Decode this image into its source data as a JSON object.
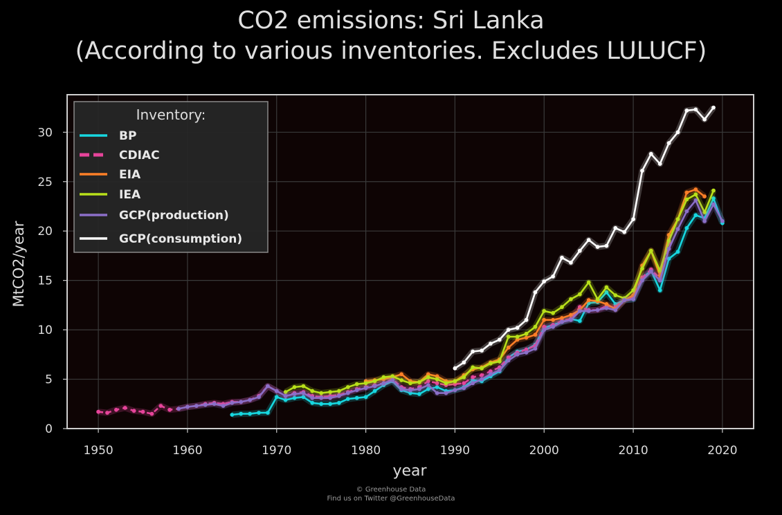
{
  "title_line1": "CO2 emissions: Sri Lanka",
  "title_line2": "(According to various inventories. Excludes LULUCF)",
  "footer_line1": "© Greenhouse Data",
  "footer_line2": "Find us on Twitter @GreenhouseData",
  "chart_data": {
    "type": "line",
    "xlabel": "year",
    "ylabel": "MtCO2/year",
    "xlim": [
      1946.5,
      2023.5
    ],
    "ylim": [
      0,
      33.8
    ],
    "xticks": [
      1950,
      1960,
      1970,
      1980,
      1990,
      2000,
      2010,
      2020
    ],
    "yticks": [
      0,
      5,
      10,
      15,
      20,
      25,
      30
    ],
    "grid": true,
    "legend": {
      "title": "Inventory:",
      "position": "top-left"
    },
    "series": [
      {
        "name": "BP",
        "color": "#17d7e0",
        "style": "solid",
        "x": [
          1965,
          1966,
          1967,
          1968,
          1969,
          1970,
          1971,
          1972,
          1973,
          1974,
          1975,
          1976,
          1977,
          1978,
          1979,
          1980,
          1981,
          1982,
          1983,
          1984,
          1985,
          1986,
          1987,
          1988,
          1989,
          1990,
          1991,
          1992,
          1993,
          1994,
          1995,
          1996,
          1997,
          1998,
          1999,
          2000,
          2001,
          2002,
          2003,
          2004,
          2005,
          2006,
          2007,
          2008,
          2009,
          2010,
          2011,
          2012,
          2013,
          2014,
          2015,
          2016,
          2017,
          2018,
          2019,
          2020
        ],
        "y": [
          1.4,
          1.5,
          1.5,
          1.6,
          1.6,
          3.2,
          2.9,
          3.1,
          3.2,
          2.6,
          2.5,
          2.5,
          2.6,
          3.0,
          3.1,
          3.2,
          3.8,
          4.4,
          4.8,
          3.9,
          3.6,
          3.5,
          4.0,
          4.2,
          3.8,
          3.9,
          4.2,
          4.9,
          4.8,
          5.3,
          5.8,
          7.2,
          7.8,
          8.0,
          8.5,
          10.2,
          10.5,
          10.8,
          11.1,
          10.9,
          12.7,
          12.8,
          13.8,
          12.6,
          13.0,
          13.1,
          15.2,
          16.0,
          14.0,
          17.2,
          17.9,
          20.3,
          21.6,
          21.3,
          23.3,
          20.8
        ]
      },
      {
        "name": "CDIAC",
        "color": "#e6449a",
        "style": "dashed",
        "x": [
          1950,
          1951,
          1952,
          1953,
          1954,
          1955,
          1956,
          1957,
          1958,
          1959,
          1960,
          1961,
          1962,
          1963,
          1964,
          1965,
          1966,
          1967,
          1968,
          1969,
          1970,
          1971,
          1972,
          1973,
          1974,
          1975,
          1976,
          1977,
          1978,
          1979,
          1980,
          1981,
          1982,
          1983,
          1984,
          1985,
          1986,
          1987,
          1988,
          1989,
          1990,
          1991,
          1992,
          1993,
          1994,
          1995,
          1996,
          1997,
          1998,
          1999,
          2000,
          2001,
          2002,
          2003,
          2004,
          2005,
          2006,
          2007,
          2008,
          2009,
          2010,
          2011,
          2012,
          2013,
          2014
        ],
        "y": [
          1.7,
          1.6,
          1.9,
          2.1,
          1.8,
          1.7,
          1.5,
          2.3,
          1.9,
          2.0,
          2.2,
          2.3,
          2.5,
          2.6,
          2.5,
          2.7,
          2.7,
          2.9,
          3.3,
          4.3,
          3.8,
          3.3,
          3.6,
          3.7,
          3.3,
          3.2,
          3.3,
          3.4,
          3.7,
          4.0,
          4.2,
          4.4,
          4.6,
          5.0,
          4.2,
          4.0,
          4.2,
          4.8,
          4.6,
          4.4,
          4.5,
          4.6,
          5.2,
          5.4,
          5.8,
          6.2,
          7.2,
          7.7,
          8.0,
          8.4,
          10.3,
          10.5,
          10.9,
          11.1,
          12.3,
          12.0,
          12.0,
          12.4,
          12.3,
          13.1,
          13.3,
          15.3,
          16.1,
          15.2,
          18.8
        ]
      },
      {
        "name": "EIA",
        "color": "#ff7f27",
        "style": "solid",
        "x": [
          1980,
          1981,
          1982,
          1983,
          1984,
          1985,
          1986,
          1987,
          1988,
          1989,
          1990,
          1991,
          1992,
          1993,
          1994,
          1995,
          1996,
          1997,
          1998,
          1999,
          2000,
          2001,
          2002,
          2003,
          2004,
          2005,
          2006,
          2007,
          2008,
          2009,
          2010,
          2011,
          2012,
          2013,
          2014,
          2015,
          2016,
          2017,
          2018
        ],
        "y": [
          4.8,
          4.9,
          5.0,
          5.2,
          5.5,
          4.8,
          4.7,
          5.5,
          5.3,
          4.8,
          4.8,
          5.4,
          6.0,
          6.2,
          6.7,
          7.0,
          8.2,
          9.0,
          9.2,
          9.5,
          11.0,
          11.0,
          11.2,
          11.5,
          12.0,
          13.0,
          12.9,
          12.6,
          12.1,
          13.0,
          13.5,
          16.5,
          18.0,
          15.5,
          19.6,
          21.2,
          23.9,
          24.2,
          23.5
        ]
      },
      {
        "name": "IEA",
        "color": "#b8e01a",
        "style": "solid",
        "x": [
          1971,
          1972,
          1973,
          1974,
          1975,
          1976,
          1977,
          1978,
          1979,
          1980,
          1981,
          1982,
          1983,
          1984,
          1985,
          1986,
          1987,
          1988,
          1989,
          1990,
          1991,
          1992,
          1993,
          1994,
          1995,
          1996,
          1997,
          1998,
          1999,
          2000,
          2001,
          2002,
          2003,
          2004,
          2005,
          2006,
          2007,
          2008,
          2009,
          2010,
          2011,
          2012,
          2013,
          2014,
          2015,
          2016,
          2017,
          2018,
          2019
        ],
        "y": [
          3.7,
          4.2,
          4.3,
          3.8,
          3.6,
          3.7,
          3.8,
          4.2,
          4.5,
          4.6,
          4.8,
          5.2,
          5.3,
          4.9,
          4.6,
          4.7,
          5.2,
          5.0,
          4.6,
          4.8,
          5.2,
          6.2,
          6.1,
          6.6,
          6.8,
          9.3,
          9.3,
          9.6,
          10.3,
          11.9,
          11.7,
          12.3,
          13.1,
          13.6,
          14.8,
          13.1,
          14.3,
          13.5,
          13.2,
          14.0,
          16.2,
          18.0,
          16.0,
          19.0,
          21.2,
          23.2,
          23.7,
          21.9,
          24.1
        ]
      },
      {
        "name": "GCP(production)",
        "color": "#8b6fc8",
        "style": "solid",
        "x": [
          1959,
          1960,
          1961,
          1962,
          1963,
          1964,
          1965,
          1966,
          1967,
          1968,
          1969,
          1970,
          1971,
          1972,
          1973,
          1974,
          1975,
          1976,
          1977,
          1978,
          1979,
          1980,
          1981,
          1982,
          1983,
          1984,
          1985,
          1986,
          1987,
          1988,
          1989,
          1990,
          1991,
          1992,
          1993,
          1994,
          1995,
          1996,
          1997,
          1998,
          1999,
          2000,
          2001,
          2002,
          2003,
          2004,
          2005,
          2006,
          2007,
          2008,
          2009,
          2010,
          2011,
          2012,
          2013,
          2014,
          2015,
          2016,
          2017,
          2018,
          2019,
          2020
        ],
        "y": [
          2.0,
          2.2,
          2.3,
          2.4,
          2.5,
          2.3,
          2.6,
          2.7,
          2.9,
          3.2,
          4.3,
          3.8,
          3.3,
          3.5,
          3.6,
          3.1,
          3.1,
          3.1,
          3.3,
          3.6,
          3.9,
          4.1,
          4.3,
          4.6,
          4.9,
          4.0,
          3.9,
          4.0,
          4.4,
          3.6,
          3.6,
          3.9,
          4.1,
          4.6,
          5.0,
          5.5,
          5.9,
          6.9,
          7.5,
          7.7,
          8.1,
          10.0,
          10.3,
          10.8,
          11.0,
          11.9,
          11.9,
          12.0,
          12.2,
          12.0,
          13.0,
          13.1,
          15.0,
          15.9,
          15.0,
          18.2,
          20.2,
          22.0,
          23.1,
          21.0,
          22.7,
          21.0
        ]
      },
      {
        "name": "GCP(consumption)",
        "color": "#ffffff",
        "style": "solid",
        "x": [
          1990,
          1991,
          1992,
          1993,
          1994,
          1995,
          1996,
          1997,
          1998,
          1999,
          2000,
          2001,
          2002,
          2003,
          2004,
          2005,
          2006,
          2007,
          2008,
          2009,
          2010,
          2011,
          2012,
          2013,
          2014,
          2015,
          2016,
          2017,
          2018,
          2019
        ],
        "y": [
          6.1,
          6.7,
          7.8,
          7.9,
          8.6,
          9.0,
          10.0,
          10.2,
          11.0,
          13.8,
          14.9,
          15.4,
          17.3,
          16.8,
          18.0,
          19.1,
          18.4,
          18.5,
          20.3,
          19.9,
          21.2,
          26.1,
          27.8,
          26.8,
          28.9,
          30.0,
          32.2,
          32.3,
          31.3,
          32.5
        ]
      }
    ]
  }
}
